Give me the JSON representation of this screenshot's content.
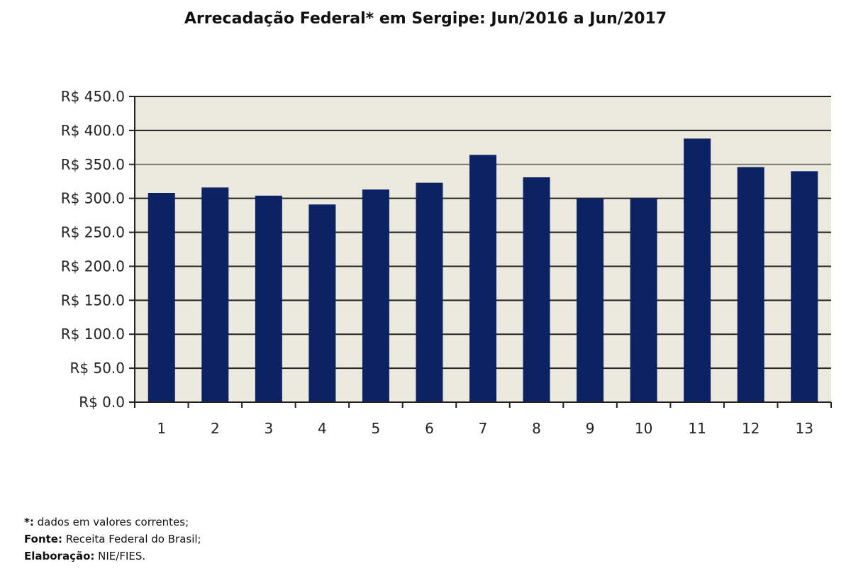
{
  "chart_data": {
    "type": "bar",
    "title": "Arrecadação Federal* em Sergipe: Jun/2016 a Jun/2017",
    "xlabel": "",
    "ylabel": "",
    "categories": [
      "1",
      "2",
      "3",
      "4",
      "5",
      "6",
      "7",
      "8",
      "9",
      "10",
      "11",
      "12",
      "13"
    ],
    "values": [
      308,
      316,
      304,
      291,
      313,
      323,
      364,
      331,
      300,
      300,
      388,
      346,
      340
    ],
    "ylim": [
      0,
      450
    ],
    "yticks": [
      0,
      50,
      100,
      150,
      200,
      250,
      300,
      350,
      400,
      450
    ],
    "ytick_format": "R$ {v}.0",
    "grid": true,
    "legend": "none",
    "colors": {
      "bar": "#0c2263",
      "plot_bg": "#ece9df",
      "grid": "#222222"
    }
  },
  "notes": [
    {
      "label": "*:",
      "text": " dados em valores correntes;"
    },
    {
      "label": "Fonte:",
      "text": " Receita Federal do Brasil;"
    },
    {
      "label": "Elaboração:",
      "text": " NIE/FIES."
    }
  ]
}
